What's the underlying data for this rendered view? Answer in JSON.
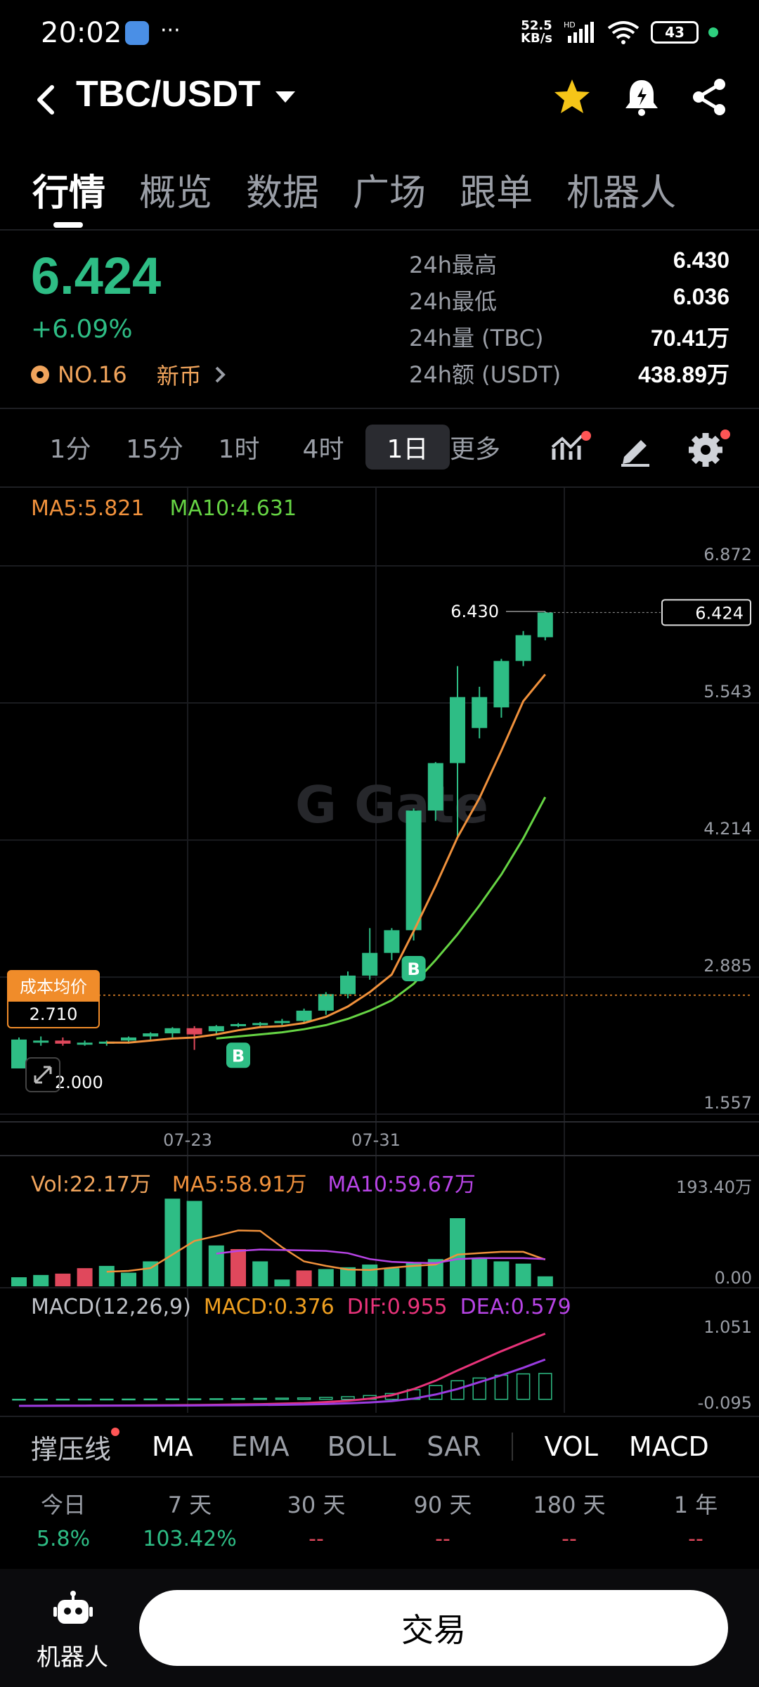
{
  "status": {
    "time": "20:02",
    "net_speed_value": "52.5",
    "net_speed_unit": "KB/s",
    "net_type": "HD",
    "battery": "43"
  },
  "header": {
    "pair": "TBC/USDT"
  },
  "tabs": [
    "行情",
    "概览",
    "数据",
    "广场",
    "跟单",
    "机器人"
  ],
  "ticker": {
    "price": "6.424",
    "change": "+6.09%",
    "rank": "NO.16",
    "tag": "新币",
    "stats": [
      {
        "label": "24h最高",
        "value": "6.430"
      },
      {
        "label": "24h最低",
        "value": "6.036"
      },
      {
        "label": "24h量 (TBC)",
        "value": "70.41万"
      },
      {
        "label": "24h额 (USDT)",
        "value": "438.89万"
      }
    ]
  },
  "intervals": [
    "1分",
    "15分",
    "1时",
    "4时",
    "1日",
    "更多"
  ],
  "chart_data": {
    "type": "candlestick",
    "x_ticks": [
      "07-23",
      "07-31"
    ],
    "y_ticks": [
      "6.872",
      "5.543",
      "4.214",
      "2.885",
      "1.557"
    ],
    "ma_labels": {
      "ma5": "MA5:5.821",
      "ma10": "MA10:4.631"
    },
    "current_price_tag": "6.424",
    "high_label": "6.430",
    "low_label": "2.000",
    "cost_tag": {
      "label": "成本均价",
      "value": "2.710"
    },
    "trade_markers": [
      "B",
      "B"
    ],
    "candles": [
      {
        "o": 2.0,
        "h": 2.3,
        "l": 2.0,
        "c": 2.28
      },
      {
        "o": 2.25,
        "h": 2.31,
        "l": 2.22,
        "c": 2.27
      },
      {
        "o": 2.27,
        "h": 2.3,
        "l": 2.22,
        "c": 2.24
      },
      {
        "o": 2.24,
        "h": 2.27,
        "l": 2.22,
        "c": 2.25
      },
      {
        "o": 2.24,
        "h": 2.27,
        "l": 2.22,
        "c": 2.26
      },
      {
        "o": 2.27,
        "h": 2.31,
        "l": 2.24,
        "c": 2.3
      },
      {
        "o": 2.31,
        "h": 2.35,
        "l": 2.28,
        "c": 2.34
      },
      {
        "o": 2.34,
        "h": 2.4,
        "l": 2.3,
        "c": 2.39
      },
      {
        "o": 2.39,
        "h": 2.41,
        "l": 2.18,
        "c": 2.33
      },
      {
        "o": 2.36,
        "h": 2.42,
        "l": 2.32,
        "c": 2.41
      },
      {
        "o": 2.42,
        "h": 2.44,
        "l": 2.4,
        "c": 2.43
      },
      {
        "o": 2.43,
        "h": 2.45,
        "l": 2.41,
        "c": 2.44
      },
      {
        "o": 2.44,
        "h": 2.48,
        "l": 2.42,
        "c": 2.46
      },
      {
        "o": 2.46,
        "h": 2.58,
        "l": 2.44,
        "c": 2.56
      },
      {
        "o": 2.56,
        "h": 2.74,
        "l": 2.52,
        "c": 2.72
      },
      {
        "o": 2.72,
        "h": 2.94,
        "l": 2.68,
        "c": 2.9
      },
      {
        "o": 2.9,
        "h": 3.36,
        "l": 2.86,
        "c": 3.12
      },
      {
        "o": 3.12,
        "h": 3.36,
        "l": 3.05,
        "c": 3.34
      },
      {
        "o": 3.34,
        "h": 4.52,
        "l": 3.24,
        "c": 4.5
      },
      {
        "o": 4.5,
        "h": 4.97,
        "l": 4.4,
        "c": 4.96
      },
      {
        "o": 4.96,
        "h": 5.9,
        "l": 4.25,
        "c": 5.6
      },
      {
        "o": 5.3,
        "h": 5.7,
        "l": 5.2,
        "c": 5.6
      },
      {
        "o": 5.5,
        "h": 5.97,
        "l": 5.4,
        "c": 5.95
      },
      {
        "o": 5.95,
        "h": 6.24,
        "l": 5.9,
        "c": 6.2
      },
      {
        "o": 6.18,
        "h": 6.43,
        "l": 6.15,
        "c": 6.42
      }
    ],
    "ma5": [
      null,
      null,
      null,
      null,
      2.25,
      2.25,
      2.27,
      2.29,
      2.3,
      2.33,
      2.37,
      2.4,
      2.41,
      2.44,
      2.5,
      2.6,
      2.74,
      2.91,
      3.33,
      3.77,
      4.24,
      4.62,
      5.08,
      5.56,
      5.82
    ],
    "ma10": [
      null,
      null,
      null,
      null,
      null,
      null,
      null,
      null,
      null,
      2.29,
      2.31,
      2.33,
      2.35,
      2.38,
      2.42,
      2.48,
      2.56,
      2.66,
      2.82,
      3.05,
      3.3,
      3.58,
      3.88,
      4.23,
      4.63
    ],
    "volume": {
      "labels": {
        "vol": "Vol:22.17万",
        "ma5": "MA5:58.91万",
        "ma10": "MA10:59.67万"
      },
      "y_ticks": [
        "193.40万",
        "0.00"
      ],
      "ymax": 193.4,
      "values": [
        20,
        25,
        28,
        40,
        45,
        30,
        55,
        193,
        188,
        90,
        82,
        55,
        15,
        35,
        38,
        42,
        48,
        40,
        52,
        60,
        150,
        62,
        55,
        50,
        22
      ],
      "up": [
        true,
        true,
        false,
        false,
        true,
        true,
        true,
        true,
        true,
        true,
        false,
        true,
        true,
        false,
        true,
        true,
        true,
        true,
        true,
        true,
        true,
        true,
        true,
        true,
        true
      ],
      "ma5": [
        null,
        null,
        null,
        null,
        32,
        34,
        40,
        70,
        100,
        111,
        123,
        122,
        86,
        55,
        45,
        37,
        36,
        41,
        45,
        48,
        70,
        73,
        76,
        76,
        59
      ],
      "ma10": [
        null,
        null,
        null,
        null,
        null,
        null,
        null,
        null,
        null,
        72,
        78,
        81,
        80,
        79,
        78,
        73,
        60,
        54,
        52,
        51,
        60,
        62,
        62,
        62,
        60
      ]
    },
    "macd": {
      "labels": {
        "title": "MACD(12,26,9)",
        "macd": "MACD:0.376",
        "dif": "DIF:0.955",
        "dea": "DEA:0.579"
      },
      "y_ticks": [
        "1.051",
        "-0.095"
      ],
      "ymin": -0.095,
      "ymax": 1.051,
      "dif": [
        -0.095,
        -0.094,
        -0.093,
        -0.092,
        -0.091,
        -0.09,
        -0.088,
        -0.086,
        -0.084,
        -0.08,
        -0.075,
        -0.07,
        -0.063,
        -0.055,
        -0.04,
        -0.02,
        0.01,
        0.06,
        0.15,
        0.27,
        0.42,
        0.56,
        0.7,
        0.83,
        0.955
      ],
      "dea": [
        -0.095,
        -0.095,
        -0.094,
        -0.094,
        -0.093,
        -0.093,
        -0.092,
        -0.091,
        -0.09,
        -0.088,
        -0.086,
        -0.083,
        -0.08,
        -0.075,
        -0.068,
        -0.058,
        -0.045,
        -0.025,
        0.01,
        0.07,
        0.15,
        0.25,
        0.35,
        0.46,
        0.579
      ],
      "hist": [
        0.0,
        0.001,
        0.001,
        0.002,
        0.002,
        0.003,
        0.004,
        0.005,
        0.006,
        0.008,
        0.011,
        0.013,
        0.017,
        0.02,
        0.028,
        0.038,
        0.055,
        0.085,
        0.14,
        0.2,
        0.27,
        0.31,
        0.35,
        0.37,
        0.376
      ]
    }
  },
  "indicator_bar": {
    "support": "撑压线",
    "items": [
      "MA",
      "EMA",
      "BOLL",
      "SAR"
    ],
    "right": [
      "VOL",
      "MACD"
    ]
  },
  "performance": [
    {
      "label": "今日",
      "value": "5.8%"
    },
    {
      "label": "7 天",
      "value": "103.42%"
    },
    {
      "label": "30 天",
      "value": "--"
    },
    {
      "label": "90 天",
      "value": "--"
    },
    {
      "label": "180 天",
      "value": "--"
    },
    {
      "label": "1 年",
      "value": "--"
    }
  ],
  "bottom": {
    "robot": "机器人",
    "trade": "交易"
  },
  "colors": {
    "up": "#2ebd85",
    "down": "#e0485c",
    "ma5": "#f0913c",
    "ma10": "#66d444",
    "vol_ma10": "#b844e6",
    "dif": "#e8337a",
    "dea": "#9a3be0",
    "accent": "#f0a45c"
  }
}
